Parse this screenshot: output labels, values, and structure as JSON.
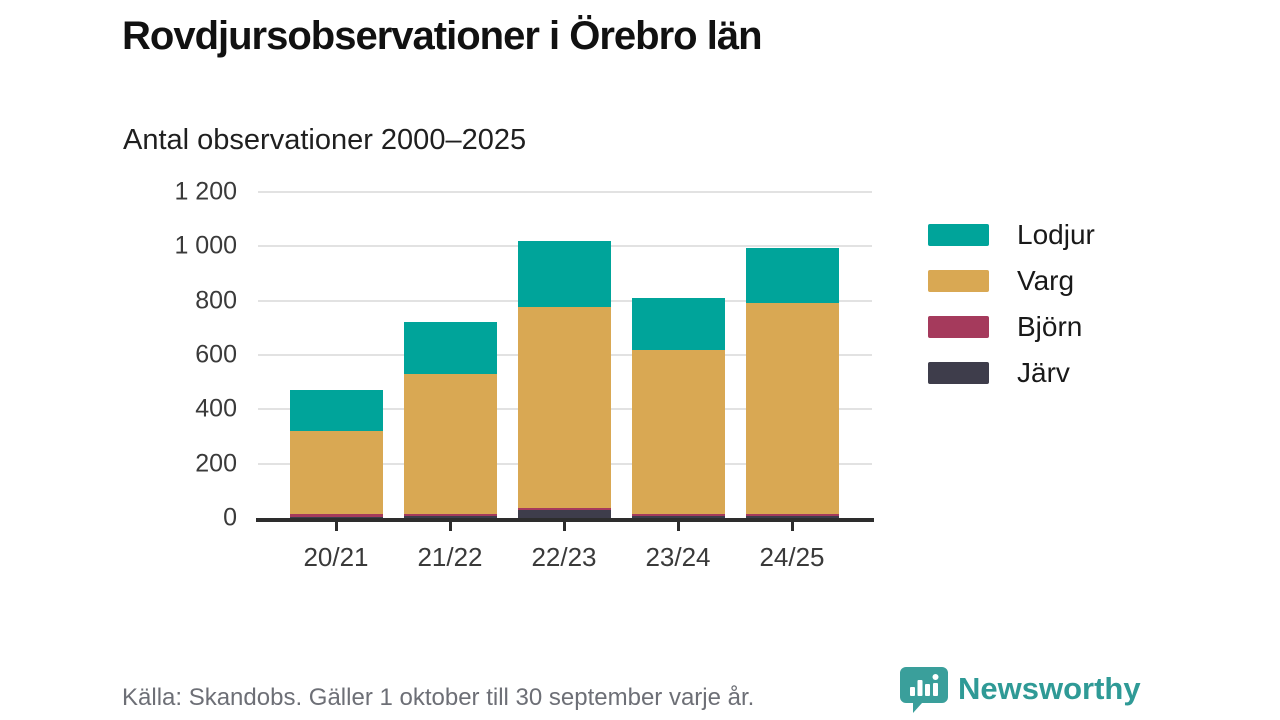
{
  "title": "Rovdjursobservationer i Örebro län",
  "subtitle": "Antal observationer 2000–2025",
  "footer": {
    "source": "Källa: Skandobs. Gäller 1 oktober till 30 september varje år."
  },
  "brand": {
    "name": "Newsworthy",
    "color": "#2f9a96"
  },
  "colors": {
    "lodjur": "#00a49a",
    "varg": "#d9a853",
    "bjorn": "#a53a5c",
    "jarv": "#3e3d4b",
    "axis": "#2d2d2d",
    "grid": "#e2e2e2"
  },
  "chart_data": {
    "type": "bar",
    "stacked": true,
    "title": "Rovdjursobservationer i Örebro län",
    "subtitle": "Antal observationer 2000–2025",
    "categories": [
      "20/21",
      "21/22",
      "22/23",
      "23/24",
      "24/25"
    ],
    "series": [
      {
        "name": "Järv",
        "color": "#3e3d4b",
        "values": [
          5,
          6,
          28,
          8,
          6
        ]
      },
      {
        "name": "Björn",
        "color": "#a53a5c",
        "values": [
          8,
          9,
          10,
          8,
          8
        ]
      },
      {
        "name": "Varg",
        "color": "#d9a853",
        "values": [
          307,
          515,
          737,
          604,
          776
        ]
      },
      {
        "name": "Lodjur",
        "color": "#00a49a",
        "values": [
          150,
          190,
          245,
          190,
          205
        ]
      }
    ],
    "totals": [
      470,
      720,
      1020,
      810,
      995
    ],
    "legend_order": [
      "Lodjur",
      "Varg",
      "Björn",
      "Järv"
    ],
    "legend_position": "right",
    "ylim": [
      0,
      1200
    ],
    "y_ticks": [
      "0",
      "200",
      "400",
      "600",
      "800",
      "1 000",
      "1 200"
    ],
    "grid": true
  }
}
